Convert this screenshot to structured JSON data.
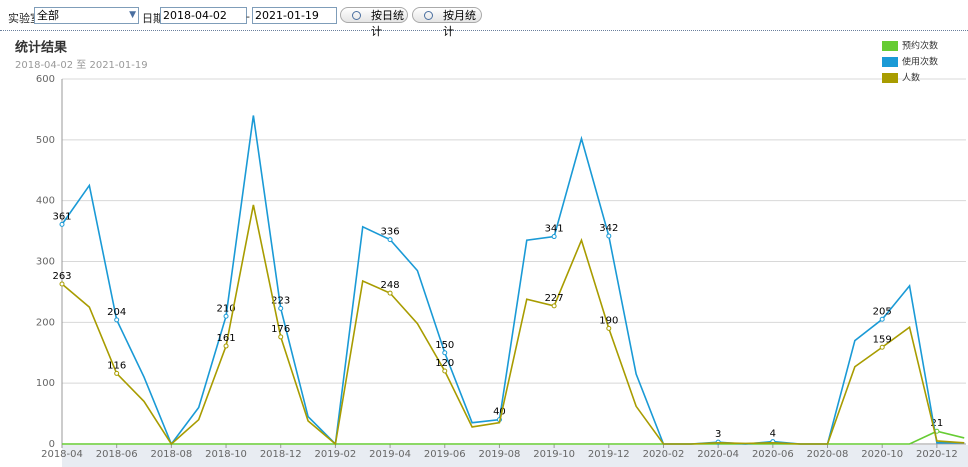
{
  "toolbar": {
    "lab_label": "实验室",
    "lab_value": "全部",
    "date_label": "日期",
    "start_date": "2018-04-02",
    "separator": "-",
    "end_date": "2021-01-19",
    "buttons": [
      "按日统计",
      "按月统计"
    ]
  },
  "chart_data": {
    "type": "line",
    "title": "统计结果",
    "subtitle": "2018-04-02 至 2021-01-19",
    "categories": [
      "2018-04",
      null,
      "2018-06",
      null,
      "2018-08",
      null,
      "2018-10",
      null,
      "2018-12",
      null,
      "2019-02",
      null,
      "2019-04",
      null,
      "2019-06",
      null,
      "2019-08",
      null,
      "2019-10",
      null,
      "2019-12",
      null,
      "2020-02",
      null,
      "2020-04",
      null,
      "2020-06",
      null,
      "2020-08",
      null,
      "2020-10",
      null,
      "2020-12",
      null
    ],
    "series": [
      {
        "name": "预约次数",
        "color": "#66cc33",
        "values": [
          0,
          0,
          0,
          0,
          0,
          0,
          0,
          0,
          0,
          0,
          0,
          0,
          0,
          0,
          0,
          0,
          0,
          0,
          0,
          0,
          0,
          0,
          0,
          0,
          0,
          0,
          0,
          0,
          0,
          0,
          0,
          0,
          21,
          10
        ]
      },
      {
        "name": "使用次数",
        "color": "#1a9ad6",
        "values": [
          361,
          425,
          204,
          110,
          0,
          60,
          210,
          540,
          223,
          45,
          0,
          357,
          336,
          285,
          150,
          35,
          40,
          335,
          341,
          502,
          342,
          115,
          0,
          0,
          3,
          0,
          4,
          0,
          0,
          170,
          205,
          260,
          2,
          2
        ]
      },
      {
        "name": "人数",
        "color": "#a89c00",
        "values": [
          263,
          225,
          116,
          70,
          0,
          40,
          161,
          393,
          176,
          38,
          0,
          268,
          248,
          198,
          120,
          28,
          35,
          238,
          227,
          335,
          190,
          62,
          0,
          0,
          2,
          1,
          2,
          0,
          0,
          127,
          159,
          192,
          5,
          2
        ]
      }
    ],
    "ylim": [
      0,
      600
    ],
    "yticks": [
      0,
      100,
      200,
      300,
      400,
      500,
      600
    ],
    "grid": true,
    "legend": "top-right"
  }
}
